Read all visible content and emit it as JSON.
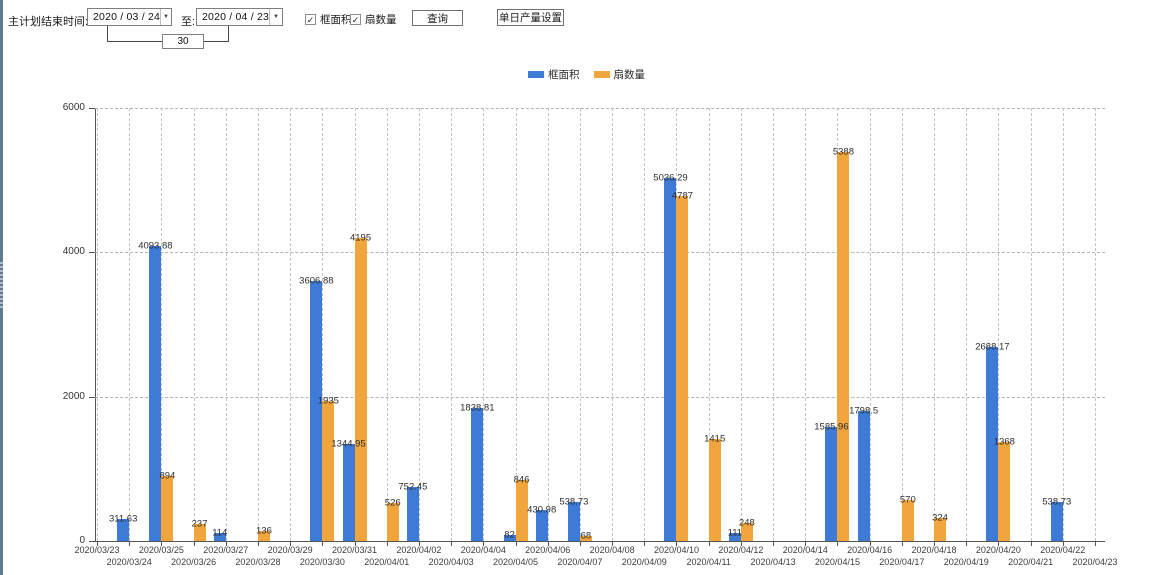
{
  "toolbar": {
    "label_plan_end": "主计划结束时间:",
    "date_from": "2020 / 03 / 24",
    "label_to": "至:",
    "date_to": "2020 / 04 / 23",
    "days_value": "30",
    "checkbox_area": {
      "label": "框面积",
      "checked": true
    },
    "checkbox_fan": {
      "label": "扇数量",
      "checked": true
    },
    "query_button": "查询",
    "daily_output_button": "单日产量设置",
    "dropdown_icon": "▼",
    "check_glyph": "✓"
  },
  "legend": [
    {
      "label": "框面积",
      "color": "#3d7bd7"
    },
    {
      "label": "扇数量",
      "color": "#f0a63c"
    }
  ],
  "chart_data": {
    "type": "bar",
    "title": "",
    "xlabel": "",
    "ylabel": "",
    "ylim": [
      0,
      6000
    ],
    "yticks": [
      0,
      2000,
      4000,
      6000
    ],
    "grid": true,
    "legend_position": "top",
    "categories": [
      "2020/03/23",
      "2020/03/24",
      "2020/03/25",
      "2020/03/26",
      "2020/03/27",
      "2020/03/28",
      "2020/03/29",
      "2020/03/30",
      "2020/03/31",
      "2020/04/01",
      "2020/04/02",
      "2020/04/03",
      "2020/04/04",
      "2020/04/05",
      "2020/04/06",
      "2020/04/07",
      "2020/04/08",
      "2020/04/09",
      "2020/04/10",
      "2020/04/11",
      "2020/04/12",
      "2020/04/13",
      "2020/04/14",
      "2020/04/15",
      "2020/04/16",
      "2020/04/17",
      "2020/04/18",
      "2020/04/19",
      "2020/04/20",
      "2020/04/21",
      "2020/04/22",
      "2020/04/23"
    ],
    "series": [
      {
        "name": "框面积",
        "color": "#3d7bd7",
        "values": [
          null,
          311.63,
          4093.88,
          null,
          114,
          null,
          null,
          3606.88,
          1344.95,
          null,
          752.45,
          null,
          1838.81,
          82,
          430.98,
          538.73,
          null,
          null,
          5036.29,
          null,
          111,
          null,
          null,
          1585.96,
          1798.5,
          null,
          null,
          null,
          2688.17,
          null,
          538.73,
          null
        ]
      },
      {
        "name": "扇数量",
        "color": "#f0a63c",
        "values": [
          null,
          null,
          894,
          237,
          null,
          136,
          null,
          1935,
          4195,
          526,
          null,
          null,
          null,
          846,
          null,
          68,
          null,
          null,
          4787,
          1415,
          248,
          null,
          null,
          5388,
          null,
          570,
          324,
          null,
          1368,
          null,
          null,
          null
        ]
      }
    ]
  }
}
